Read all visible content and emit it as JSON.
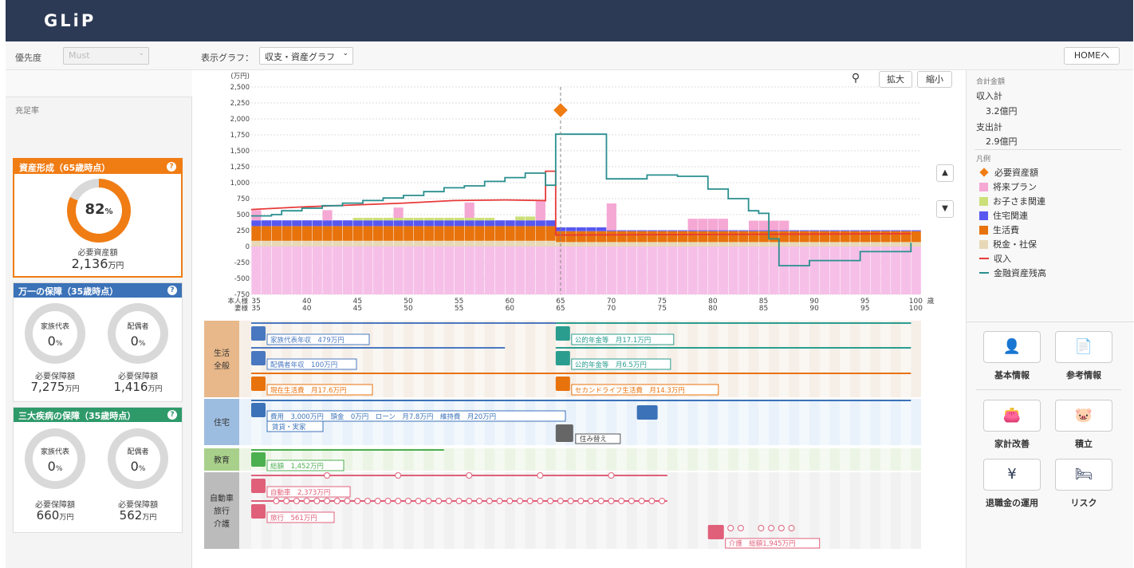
{
  "app": {
    "logo": "GLiP"
  },
  "toolbar": {
    "priority_label": "優先度",
    "priority_value": "Must",
    "graph_label": "表示グラフ：",
    "graph_value": "収支・資産グラフ",
    "home_button": "HOMEへ"
  },
  "left": {
    "fulfillment_label": "充足率",
    "asset_card": {
      "title": "資産形成（65歳時点）",
      "percent": "82",
      "percent_unit": "%",
      "amount_label": "必要資産額",
      "amount": "2,136",
      "unit": "万円",
      "color": "#f07c14",
      "fraction": 0.82
    },
    "insurance_card": {
      "title": "万一の保障（35歳時点）",
      "color": "#3b72b8",
      "a_label": "家族代表",
      "a_pct": "0",
      "a_amount_label": "必要保障額",
      "a_amount": "7,275",
      "b_label": "配偶者",
      "b_pct": "0",
      "b_amount_label": "必要保障額",
      "b_amount": "1,416",
      "pct_unit": "%",
      "unit": "万円"
    },
    "disease_card": {
      "title": "三大疾病の保障（35歳時点）",
      "color": "#2e9a6a",
      "a_label": "家族代表",
      "a_pct": "0",
      "a_amount_label": "必要保障額",
      "a_amount": "660",
      "b_label": "配偶者",
      "b_pct": "0",
      "b_amount_label": "必要保障額",
      "b_amount": "562",
      "pct_unit": "%",
      "unit": "万円"
    }
  },
  "chart_controls": {
    "zoom_in": "拡大",
    "zoom_out": "縮小"
  },
  "chart_data": {
    "type": "bar",
    "y_unit_label": "(万円)",
    "ylim": [
      -750,
      2500
    ],
    "y_ticks": [
      "2,500",
      "2,250",
      "2,000",
      "1,750",
      "1,500",
      "1,250",
      "1,000",
      "750",
      "500",
      "250",
      "0",
      "-250",
      "-500",
      "-750"
    ],
    "x_row1_label": "本人様",
    "x_row2_label": "妻様",
    "x_unit": "歳",
    "x_ticks": [
      "35",
      "40",
      "45",
      "50",
      "55",
      "60",
      "65",
      "70",
      "75",
      "80",
      "85",
      "90",
      "95",
      "100"
    ],
    "marker_age": 65,
    "marker_value": 2136,
    "series": [
      {
        "name": "税金・社保",
        "color": "#e8d8b8"
      },
      {
        "name": "生活費",
        "color": "#e8720c"
      },
      {
        "name": "住宅関連",
        "color": "#5858f0"
      },
      {
        "name": "お子さま関連",
        "color": "#cce07a"
      },
      {
        "name": "将来プラン",
        "color": "#f5a8d4"
      },
      {
        "name": "収入",
        "color": "#e83a3a"
      },
      {
        "name": "金融資産残高",
        "color": "#2a8f8f"
      }
    ]
  },
  "timeline": {
    "categories": [
      {
        "label": "生活\n全般",
        "color": "#e8b88a"
      },
      {
        "label": "住宅",
        "color": "#9dbde0"
      },
      {
        "label": "教育",
        "color": "#a8d08a"
      },
      {
        "label": "自動車\n旅行\n介護",
        "color": "#bbbbbb"
      }
    ],
    "items": {
      "income_self": "家族代表年収　479万円",
      "income_spouse": "配偶者年収　100万円",
      "pension_self": "公的年金等　月17.1万円",
      "pension_spouse": "公的年金等　月6.5万円",
      "living_now": "現在生活費　月17.6万円",
      "living_second": "セカンドライフ生活費　月14.3万円",
      "housing": "費用　3,000万円　頭金　0万円　ローン　月7.8万円　維持費　月20万円",
      "housing_type": "賃貸・実家",
      "relocation": "住み替え",
      "education": "総額　1,452万円",
      "car": "自動車　2,373万円",
      "travel": "旅行　561万円",
      "care": "介護　総額1,945万円"
    }
  },
  "right": {
    "total_label": "合計金額",
    "income_label": "収入計",
    "income_value": "3.2億円",
    "expense_label": "支出計",
    "expense_value": "2.9億円",
    "legend_label": "凡例",
    "legend": [
      {
        "name": "必要資産額",
        "color": "#f07c14",
        "shape": "diamond"
      },
      {
        "name": "将来プラン",
        "color": "#f5a8d4",
        "shape": "square"
      },
      {
        "name": "お子さま関連",
        "color": "#cce07a",
        "shape": "square"
      },
      {
        "name": "住宅関連",
        "color": "#5858f0",
        "shape": "square"
      },
      {
        "name": "生活費",
        "color": "#e8720c",
        "shape": "square"
      },
      {
        "name": "税金・社保",
        "color": "#e8d8b8",
        "shape": "square"
      },
      {
        "name": "収入",
        "color": "#e83a3a",
        "shape": "line"
      },
      {
        "name": "金融資産残高",
        "color": "#2a8f8f",
        "shape": "line"
      }
    ],
    "nav": [
      {
        "label": "基本情報",
        "icon": "person-gear-icon"
      },
      {
        "label": "参考情報",
        "icon": "document-icon"
      },
      {
        "label": "家計改善",
        "icon": "wallet-calculator-icon"
      },
      {
        "label": "積立",
        "icon": "piggy-bank-icon"
      },
      {
        "label": "退職金の運用",
        "icon": "yen-hand-icon"
      },
      {
        "label": "リスク",
        "icon": "hospital-bed-icon"
      }
    ]
  }
}
